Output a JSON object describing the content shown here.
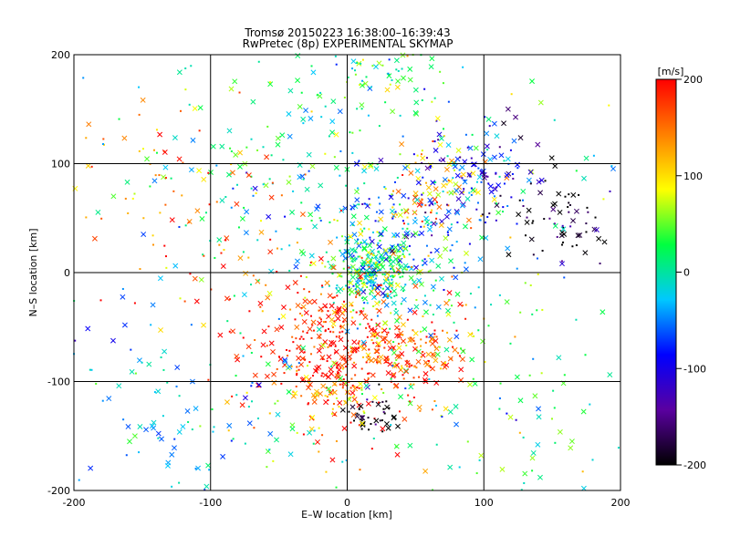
{
  "chart_data": {
    "type": "scatter",
    "title": "Tromsø 20150223 16:38:00–16:39:43",
    "subtitle": "RwPretec (8p) EXPERIMENTAL SKYMAP",
    "xlabel": "E–W location [km]",
    "ylabel": "N–S location [km]",
    "xlim": [
      -200,
      200
    ],
    "ylim": [
      -200,
      200
    ],
    "x_ticks": [
      "-200",
      "-100",
      "0",
      "100",
      "200"
    ],
    "y_ticks": [
      "-200",
      "-100",
      "0",
      "100",
      "200"
    ],
    "grid": true,
    "colorbar": {
      "label": "[m/s]",
      "range": [
        -200,
        200
      ],
      "ticks": [
        "200",
        "100",
        "0",
        "-100",
        "-200"
      ],
      "colormap": [
        "#000000",
        "#5a00a0",
        "#0000ff",
        "#00c8ff",
        "#00ff40",
        "#ffff00",
        "#ff8000",
        "#ff0000"
      ]
    },
    "marker_types": [
      "cross",
      "dot"
    ],
    "clusters": [
      {
        "x": 20,
        "y": 0,
        "spread": 15,
        "velocity": 10,
        "count": 260
      },
      {
        "x": -10,
        "y": -70,
        "spread": 35,
        "velocity": 190,
        "count": 380
      },
      {
        "x": 50,
        "y": -75,
        "spread": 20,
        "velocity": 160,
        "count": 120
      },
      {
        "x": 60,
        "y": 80,
        "spread": 22,
        "velocity": 110,
        "count": 90
      },
      {
        "x": 90,
        "y": 90,
        "spread": 25,
        "velocity": -100,
        "count": 120
      },
      {
        "x": 160,
        "y": 50,
        "spread": 22,
        "velocity": -200,
        "count": 70
      },
      {
        "x": 20,
        "y": -130,
        "spread": 10,
        "velocity": -200,
        "count": 40
      },
      {
        "x": -5,
        "y": -115,
        "spread": 12,
        "velocity": 100,
        "count": 40
      },
      {
        "x": 30,
        "y": 190,
        "spread": 20,
        "velocity": 20,
        "count": 70
      },
      {
        "x": -40,
        "y": 100,
        "spread": 60,
        "velocity": 0,
        "count": 160
      },
      {
        "x": 40,
        "y": 30,
        "spread": 30,
        "velocity": -40,
        "count": 160
      },
      {
        "x": -120,
        "y": 60,
        "spread": 60,
        "velocity": 150,
        "count": 110
      },
      {
        "x": -150,
        "y": -120,
        "spread": 40,
        "velocity": -40,
        "count": 60
      },
      {
        "x": 120,
        "y": -140,
        "spread": 40,
        "velocity": 20,
        "count": 50
      },
      {
        "x": -70,
        "y": -150,
        "spread": 40,
        "velocity": 10,
        "count": 60
      },
      {
        "x": 40,
        "y": -30,
        "spread": 40,
        "velocity": 60,
        "count": 120
      },
      {
        "x": 0,
        "y": 0,
        "spread": 150,
        "velocity": 0,
        "count": 220
      }
    ]
  }
}
